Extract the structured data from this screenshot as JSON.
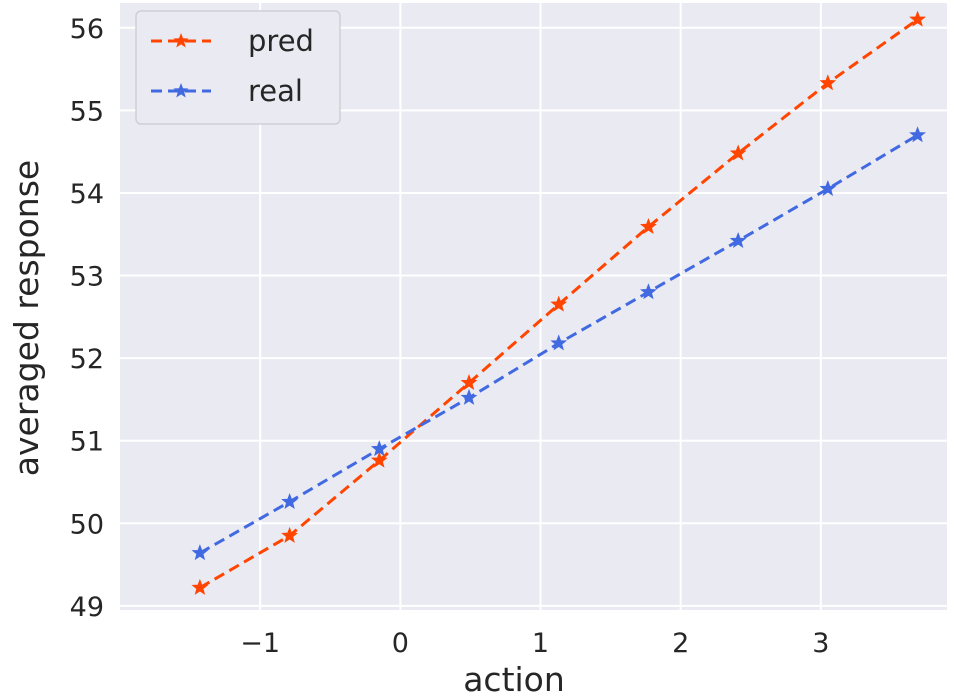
{
  "chart_data": {
    "type": "line",
    "xlabel": "action",
    "ylabel": "averaged response",
    "xlim": [
      -2.0,
      3.9
    ],
    "ylim": [
      48.95,
      56.3
    ],
    "x_ticks": [
      -1,
      0,
      1,
      2,
      3
    ],
    "x_tick_labels": [
      "−1",
      "0",
      "1",
      "2",
      "3"
    ],
    "y_ticks": [
      49,
      50,
      51,
      52,
      53,
      54,
      55,
      56
    ],
    "y_tick_labels": [
      "49",
      "50",
      "51",
      "52",
      "53",
      "54",
      "55",
      "56"
    ],
    "grid": true,
    "legend_position": "top-left",
    "background": "#EAEAF2",
    "grid_color": "#FFFFFF",
    "marker": "star",
    "line_style": "dashed",
    "series": [
      {
        "name": "pred",
        "color": "#FF4500",
        "x": [
          -1.43,
          -0.79,
          -0.15,
          0.49,
          1.13,
          1.77,
          2.41,
          3.05,
          3.69
        ],
        "y": [
          49.22,
          49.85,
          50.76,
          51.7,
          52.65,
          53.59,
          54.48,
          55.33,
          56.1
        ]
      },
      {
        "name": "real",
        "color": "#4169E1",
        "x": [
          -1.43,
          -0.79,
          -0.15,
          0.49,
          1.13,
          1.77,
          2.41,
          3.05,
          3.69
        ],
        "y": [
          49.64,
          50.26,
          50.9,
          51.52,
          52.18,
          52.8,
          53.42,
          54.05,
          54.7
        ]
      }
    ]
  }
}
